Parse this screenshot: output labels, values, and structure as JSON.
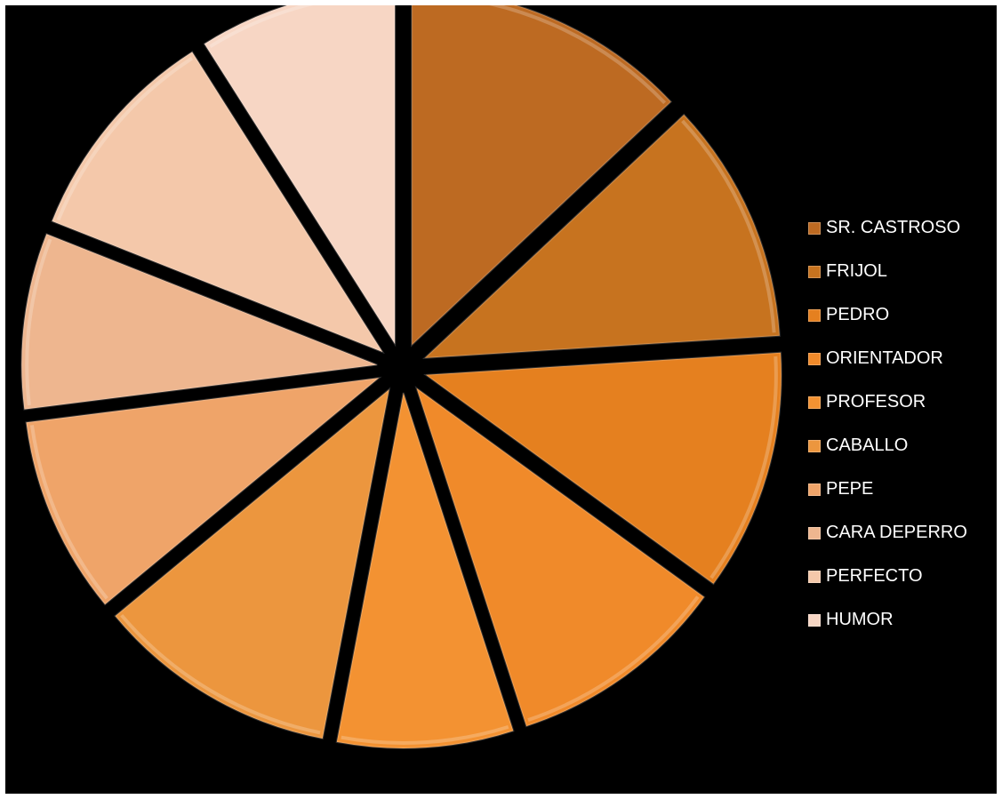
{
  "chart_data": {
    "type": "pie",
    "title": "",
    "categories": [
      "SR. CASTROSO",
      "FRIJOL",
      "PEDRO",
      "ORIENTADOR",
      "PROFESOR",
      "CABALLO",
      "PEPE",
      "CARA DEPERRO",
      "PERFECTO",
      "HUMOR"
    ],
    "values": [
      13,
      11,
      11,
      10,
      8,
      11,
      9,
      8,
      10,
      9
    ],
    "colors": [
      "#bd6a22",
      "#c7731f",
      "#e5801f",
      "#f08a2a",
      "#f39232",
      "#ec963e",
      "#efa469",
      "#eeb68f",
      "#f4c8aa",
      "#f7d6c4"
    ],
    "exploded": true,
    "legend_position": "right"
  }
}
